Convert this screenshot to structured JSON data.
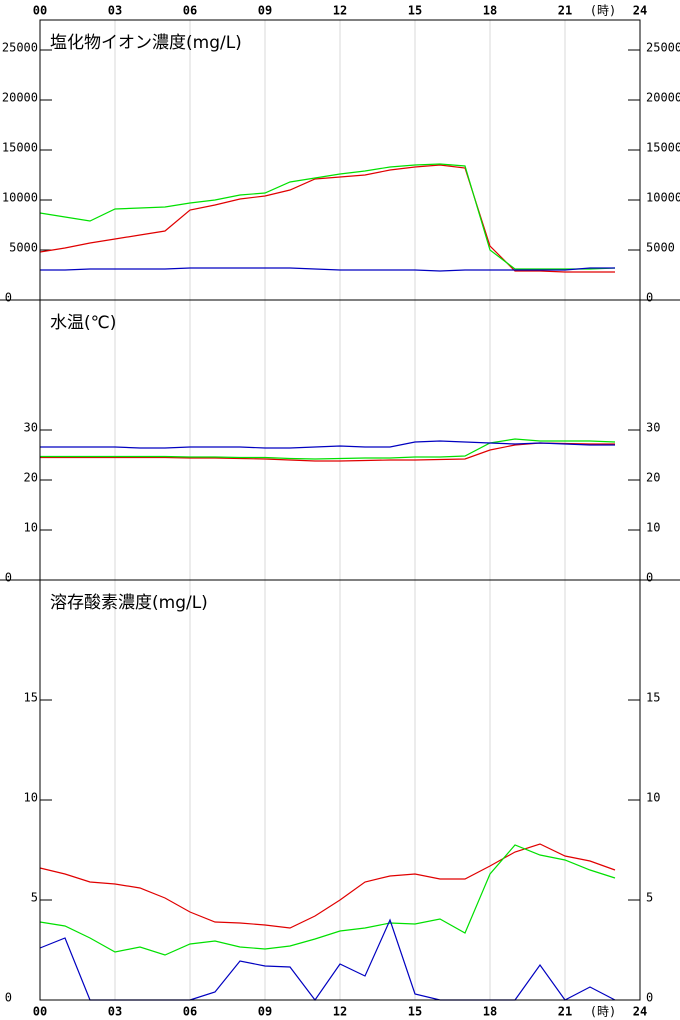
{
  "chart_data": [
    {
      "type": "line",
      "title": "塩化物イオン濃度(mg/L)",
      "x_label": "(時)",
      "x_label_side": "top",
      "x": [
        0,
        1,
        2,
        3,
        4,
        5,
        6,
        7,
        8,
        9,
        10,
        11,
        12,
        13,
        14,
        15,
        16,
        17,
        18,
        19,
        20,
        21,
        22,
        23
      ],
      "xlim": [
        0,
        24
      ],
      "xticks": [
        {
          "value": 0,
          "label": "00"
        },
        {
          "value": 3,
          "label": "03"
        },
        {
          "value": 6,
          "label": "06"
        },
        {
          "value": 9,
          "label": "09"
        },
        {
          "value": 12,
          "label": "12"
        },
        {
          "value": 15,
          "label": "15"
        },
        {
          "value": 18,
          "label": "18"
        },
        {
          "value": 21,
          "label": "21"
        },
        {
          "value": 24,
          "label": "24"
        }
      ],
      "ylim": [
        0,
        28000
      ],
      "yticks": [
        0,
        5000,
        10000,
        15000,
        20000,
        25000
      ],
      "grid": true,
      "series": [
        {
          "color": "#e00000",
          "values": [
            4800,
            5200,
            5700,
            6100,
            6500,
            6900,
            9000,
            9500,
            10100,
            10400,
            11000,
            12100,
            12300,
            12500,
            13000,
            13300,
            13500,
            13200,
            5400,
            2900,
            2900,
            2800,
            2800,
            2800
          ]
        },
        {
          "color": "#00e000",
          "values": [
            8700,
            8300,
            7900,
            9100,
            9200,
            9300,
            9700,
            10000,
            10500,
            10700,
            11800,
            12200,
            12600,
            12900,
            13300,
            13500,
            13600,
            13400,
            5000,
            3100,
            3100,
            3100,
            3100,
            3200
          ]
        },
        {
          "color": "#0000c0",
          "values": [
            3000,
            3000,
            3100,
            3100,
            3100,
            3100,
            3200,
            3200,
            3200,
            3200,
            3200,
            3100,
            3000,
            3000,
            3000,
            3000,
            2900,
            3000,
            3000,
            3000,
            3000,
            3000,
            3200,
            3200
          ]
        }
      ]
    },
    {
      "type": "line",
      "title": "水温(℃)",
      "x": [
        0,
        1,
        2,
        3,
        4,
        5,
        6,
        7,
        8,
        9,
        10,
        11,
        12,
        13,
        14,
        15,
        16,
        17,
        18,
        19,
        20,
        21,
        22,
        23
      ],
      "xlim": [
        0,
        24
      ],
      "xticks": [
        0,
        3,
        6,
        9,
        12,
        15,
        18,
        21,
        24
      ],
      "ylim": [
        0,
        56
      ],
      "yticks": [
        0,
        10,
        20,
        30
      ],
      "grid": true,
      "series": [
        {
          "color": "#e00000",
          "values": [
            24.5,
            24.5,
            24.5,
            24.5,
            24.5,
            24.5,
            24.4,
            24.4,
            24.3,
            24.2,
            24.0,
            23.8,
            23.8,
            23.9,
            24.0,
            24.0,
            24.1,
            24.2,
            26.0,
            27.0,
            27.4,
            27.3,
            27.2,
            27.2
          ]
        },
        {
          "color": "#00e000",
          "values": [
            24.7,
            24.7,
            24.7,
            24.7,
            24.7,
            24.7,
            24.6,
            24.6,
            24.5,
            24.5,
            24.3,
            24.2,
            24.3,
            24.4,
            24.4,
            24.6,
            24.6,
            24.8,
            27.4,
            28.2,
            27.8,
            27.8,
            27.8,
            27.6
          ]
        },
        {
          "color": "#0000c0",
          "values": [
            26.6,
            26.6,
            26.6,
            26.6,
            26.4,
            26.4,
            26.6,
            26.6,
            26.6,
            26.4,
            26.4,
            26.6,
            26.8,
            26.6,
            26.6,
            27.6,
            27.8,
            27.6,
            27.4,
            27.2,
            27.4,
            27.2,
            27.0,
            27.0
          ]
        }
      ]
    },
    {
      "type": "line",
      "title": "溶存酸素濃度(mg/L)",
      "x_label": "(時)",
      "x_label_side": "bottom",
      "x": [
        0,
        1,
        2,
        3,
        4,
        5,
        6,
        7,
        8,
        9,
        10,
        11,
        12,
        13,
        14,
        15,
        16,
        17,
        18,
        19,
        20,
        21,
        22,
        23
      ],
      "xlim": [
        0,
        24
      ],
      "xticks": [
        {
          "value": 0,
          "label": "00"
        },
        {
          "value": 3,
          "label": "03"
        },
        {
          "value": 6,
          "label": "06"
        },
        {
          "value": 9,
          "label": "09"
        },
        {
          "value": 12,
          "label": "12"
        },
        {
          "value": 15,
          "label": "15"
        },
        {
          "value": 18,
          "label": "18"
        },
        {
          "value": 21,
          "label": "21"
        },
        {
          "value": 24,
          "label": "24"
        }
      ],
      "ylim": [
        0,
        21
      ],
      "yticks": [
        0,
        5,
        10,
        15
      ],
      "grid": true,
      "series": [
        {
          "color": "#e00000",
          "values": [
            6.6,
            6.3,
            5.9,
            5.8,
            5.6,
            5.1,
            4.4,
            3.9,
            3.85,
            3.75,
            3.6,
            4.2,
            5.0,
            5.9,
            6.2,
            6.3,
            6.05,
            6.05,
            6.7,
            7.4,
            7.8,
            7.2,
            6.95,
            6.5
          ]
        },
        {
          "color": "#00e000",
          "values": [
            3.9,
            3.7,
            3.1,
            2.4,
            2.65,
            2.25,
            2.8,
            2.95,
            2.65,
            2.55,
            2.7,
            3.05,
            3.45,
            3.6,
            3.85,
            3.8,
            4.05,
            3.35,
            6.3,
            7.75,
            7.25,
            7.0,
            6.5,
            6.1
          ]
        },
        {
          "color": "#0000c0",
          "values": [
            2.6,
            3.1,
            0,
            0,
            0,
            0,
            0,
            0.4,
            1.95,
            1.7,
            1.65,
            0,
            1.8,
            1.2,
            4.0,
            0.3,
            0,
            0,
            0,
            0,
            1.75,
            0,
            0.65,
            0
          ]
        }
      ]
    }
  ]
}
